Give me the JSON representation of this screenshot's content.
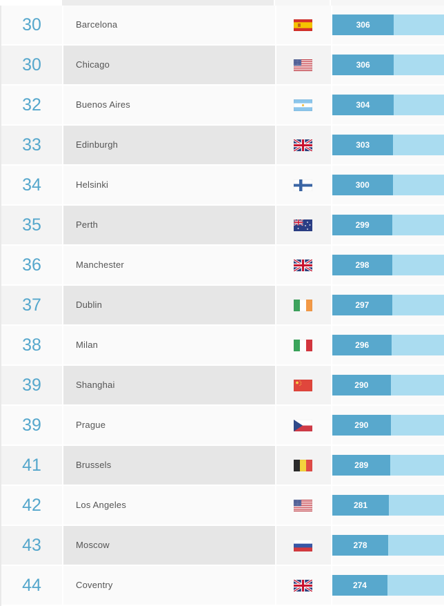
{
  "rankings": {
    "score_max": 562,
    "rows": [
      {
        "rank": "30",
        "city": "Barcelona",
        "country": "Spain",
        "flag": "es-flag-icon",
        "score": "306"
      },
      {
        "rank": "30",
        "city": "Chicago",
        "country": "United States",
        "flag": "us-flag-icon",
        "score": "306"
      },
      {
        "rank": "32",
        "city": "Buenos Aires",
        "country": "Argentina",
        "flag": "ar-flag-icon",
        "score": "304"
      },
      {
        "rank": "33",
        "city": "Edinburgh",
        "country": "United Kingdom",
        "flag": "gb-flag-icon",
        "score": "303"
      },
      {
        "rank": "34",
        "city": "Helsinki",
        "country": "Finland",
        "flag": "fi-flag-icon",
        "score": "300"
      },
      {
        "rank": "35",
        "city": "Perth",
        "country": "Australia",
        "flag": "au-flag-icon",
        "score": "299"
      },
      {
        "rank": "36",
        "city": "Manchester",
        "country": "United Kingdom",
        "flag": "gb-flag-icon",
        "score": "298"
      },
      {
        "rank": "37",
        "city": "Dublin",
        "country": "Ireland",
        "flag": "ie-flag-icon",
        "score": "297"
      },
      {
        "rank": "38",
        "city": "Milan",
        "country": "Italy",
        "flag": "it-flag-icon",
        "score": "296"
      },
      {
        "rank": "39",
        "city": "Shanghai",
        "country": "China",
        "flag": "cn-flag-icon",
        "score": "290"
      },
      {
        "rank": "39",
        "city": "Prague",
        "country": "Czech Republic",
        "flag": "cz-flag-icon",
        "score": "290"
      },
      {
        "rank": "41",
        "city": "Brussels",
        "country": "Belgium",
        "flag": "be-flag-icon",
        "score": "289"
      },
      {
        "rank": "42",
        "city": "Los Angeles",
        "country": "United States",
        "flag": "us-flag-icon",
        "score": "281"
      },
      {
        "rank": "43",
        "city": "Moscow",
        "country": "Russia",
        "flag": "ru-flag-icon",
        "score": "278"
      },
      {
        "rank": "44",
        "city": "Coventry",
        "country": "United Kingdom",
        "flag": "gb-flag-icon",
        "score": "274"
      }
    ]
  },
  "colors": {
    "rank_text": "#55a7cc",
    "bar_fill": "#58a8cd",
    "bar_track": "#aadcf0"
  }
}
